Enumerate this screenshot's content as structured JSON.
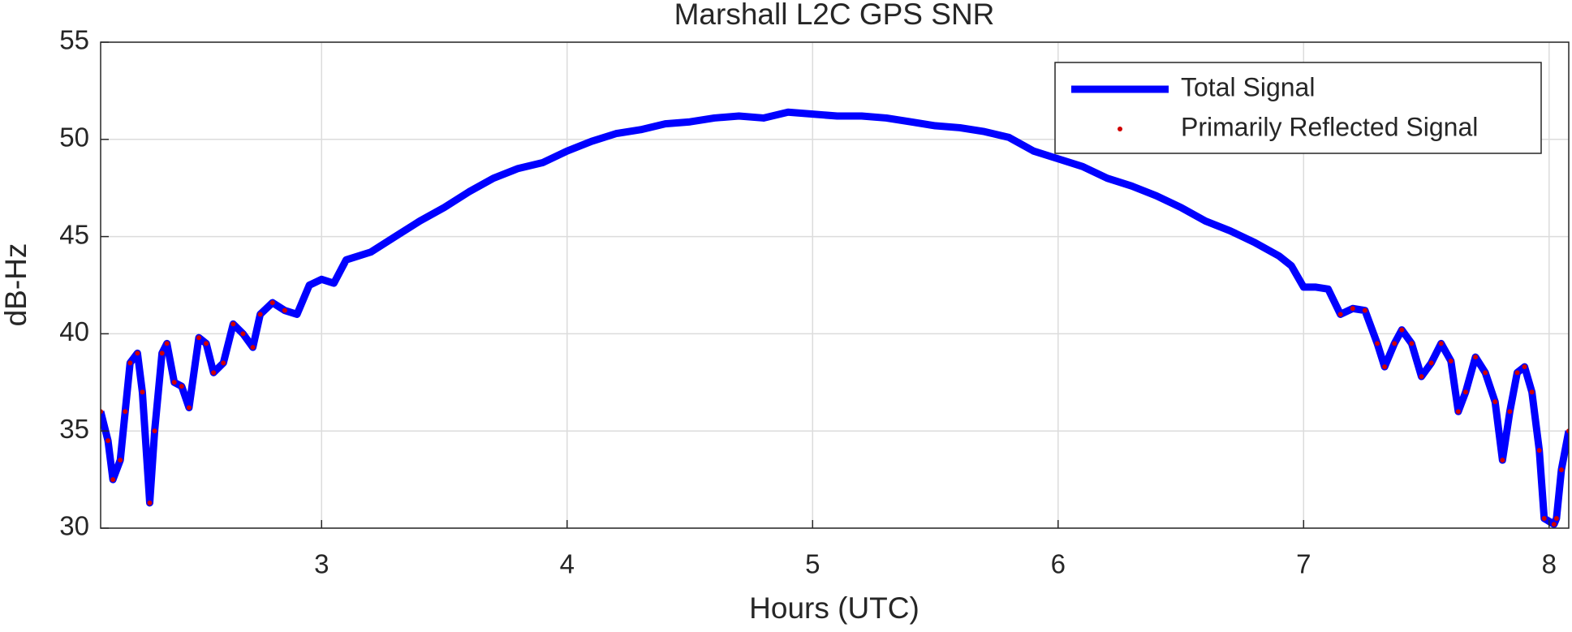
{
  "chart_data": {
    "type": "line",
    "title": "Marshall L2C GPS SNR",
    "x_label": "Hours (UTC)",
    "y_label": "dB-Hz",
    "x": [
      2.1,
      2.13,
      2.15,
      2.18,
      2.2,
      2.22,
      2.25,
      2.27,
      2.3,
      2.32,
      2.35,
      2.37,
      2.4,
      2.43,
      2.46,
      2.5,
      2.53,
      2.56,
      2.6,
      2.64,
      2.68,
      2.72,
      2.75,
      2.8,
      2.85,
      2.9,
      2.95,
      3.0,
      3.05,
      3.1,
      3.2,
      3.3,
      3.4,
      3.5,
      3.6,
      3.7,
      3.8,
      3.9,
      4.0,
      4.1,
      4.2,
      4.3,
      4.4,
      4.5,
      4.6,
      4.7,
      4.8,
      4.9,
      5.0,
      5.1,
      5.2,
      5.3,
      5.4,
      5.5,
      5.6,
      5.7,
      5.8,
      5.9,
      6.0,
      6.1,
      6.2,
      6.3,
      6.4,
      6.5,
      6.6,
      6.7,
      6.8,
      6.9,
      6.95,
      7.0,
      7.05,
      7.1,
      7.15,
      7.2,
      7.25,
      7.3,
      7.33,
      7.37,
      7.4,
      7.44,
      7.48,
      7.52,
      7.56,
      7.6,
      7.63,
      7.66,
      7.7,
      7.74,
      7.78,
      7.81,
      7.84,
      7.87,
      7.9,
      7.93,
      7.96,
      7.98,
      8.02,
      8.03,
      8.05,
      8.08
    ],
    "series": [
      {
        "name": "Total Signal",
        "color": "#0000ff",
        "style": "line",
        "values": [
          36,
          34.5,
          32.5,
          33.5,
          36,
          38.5,
          39,
          37,
          31.3,
          35,
          39,
          39.5,
          37.5,
          37.3,
          36.2,
          39.8,
          39.5,
          38,
          38.5,
          40.5,
          40,
          39.3,
          41,
          41.6,
          41.2,
          41,
          42.5,
          42.8,
          42.6,
          43.8,
          44.2,
          45,
          45.8,
          46.5,
          47.3,
          48,
          48.5,
          48.8,
          49.4,
          49.9,
          50.3,
          50.5,
          50.8,
          50.9,
          51.1,
          51.2,
          51.1,
          51.4,
          51.3,
          51.2,
          51.2,
          51.1,
          50.9,
          50.7,
          50.6,
          50.4,
          50.1,
          49.4,
          49,
          48.6,
          48,
          47.6,
          47.1,
          46.5,
          45.8,
          45.3,
          44.7,
          44,
          43.5,
          42.4,
          42.4,
          42.3,
          41,
          41.3,
          41.2,
          39.5,
          38.3,
          39.5,
          40.2,
          39.5,
          37.8,
          38.5,
          39.5,
          38.6,
          36,
          37,
          38.8,
          38,
          36.5,
          33.5,
          36,
          38,
          38.3,
          37,
          34,
          30.5,
          30.2,
          30.5,
          33,
          35
        ]
      },
      {
        "name": "Primarily Reflected Signal",
        "color": "#d00000",
        "style": "dots",
        "values": [
          36,
          34.5,
          32.5,
          33.5,
          36,
          38.5,
          39,
          37,
          31.3,
          35,
          39,
          39.5,
          37.5,
          37.3,
          36.2,
          39.8,
          39.5,
          38,
          38.5,
          40.5,
          40,
          39.3,
          41,
          41.6,
          41.2,
          null,
          null,
          null,
          null,
          null,
          null,
          null,
          null,
          null,
          null,
          null,
          null,
          null,
          null,
          null,
          null,
          null,
          null,
          null,
          null,
          null,
          null,
          null,
          null,
          null,
          null,
          null,
          null,
          null,
          null,
          null,
          null,
          null,
          null,
          null,
          null,
          null,
          null,
          null,
          null,
          null,
          null,
          null,
          null,
          null,
          null,
          null,
          41,
          41.3,
          41.2,
          39.5,
          38.3,
          39.5,
          40.2,
          39.5,
          37.8,
          38.5,
          39.5,
          38.6,
          36,
          37,
          38.8,
          38,
          36.5,
          33.5,
          36,
          38,
          38.3,
          37,
          34,
          30.5,
          30.2,
          30.5,
          33,
          35
        ]
      }
    ],
    "xlim": [
      2.1,
      8.08
    ],
    "ylim": [
      30,
      55
    ],
    "xticks": [
      3,
      4,
      5,
      6,
      7,
      8
    ],
    "yticks": [
      30,
      35,
      40,
      45,
      50,
      55
    ],
    "grid": true,
    "legend": "northeast"
  }
}
